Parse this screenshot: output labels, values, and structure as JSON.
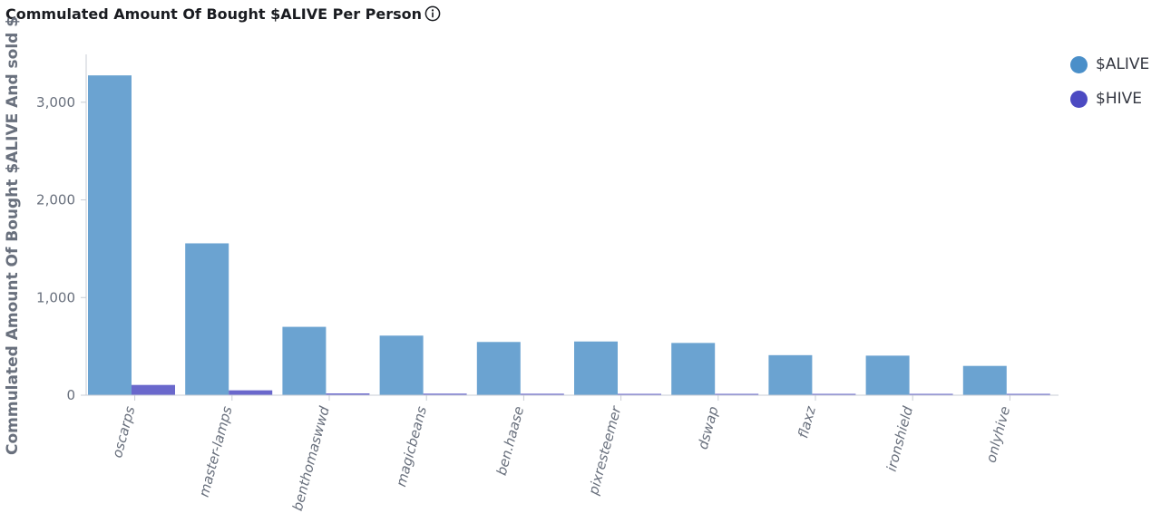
{
  "header": {
    "title": "Commulated Amount Of Bought $ALIVE Per Person",
    "info_icon": "info-circle-icon"
  },
  "colors": {
    "alive": "#6ba3d1",
    "alive_legend": "#4a8fc9",
    "hive": "#6a68cc",
    "hive_legend": "#4c4ac2",
    "axis": "#c8ccd4",
    "tick_text": "#69707d",
    "ylabel_text": "#69707d"
  },
  "chart_data": {
    "type": "bar",
    "title": "Commulated Amount Of Bought $ALIVE Per Person",
    "ylabel": "Commulated Amount Of Bought $ALIVE And sold $",
    "xlabel": "",
    "categories": [
      "oscarps",
      "master-lamps",
      "benthomaswwd",
      "magicbeans",
      "ben.haase",
      "pixresteemer",
      "dswap",
      "flaxz",
      "ironshield",
      "onlyhive"
    ],
    "series": [
      {
        "name": "$ALIVE",
        "values": [
          3275,
          1555,
          700,
          610,
          545,
          550,
          535,
          410,
          405,
          300
        ]
      },
      {
        "name": "$HIVE",
        "values": [
          105,
          50,
          18,
          16,
          15,
          14,
          12,
          11,
          10,
          9
        ]
      }
    ],
    "yticks": [
      0,
      1000,
      2000,
      3000
    ],
    "ytick_labels": [
      "0",
      "1,000",
      "2,000",
      "3,000"
    ],
    "ylim": [
      0,
      3490
    ],
    "grid": false,
    "legend_position": "top-right"
  }
}
